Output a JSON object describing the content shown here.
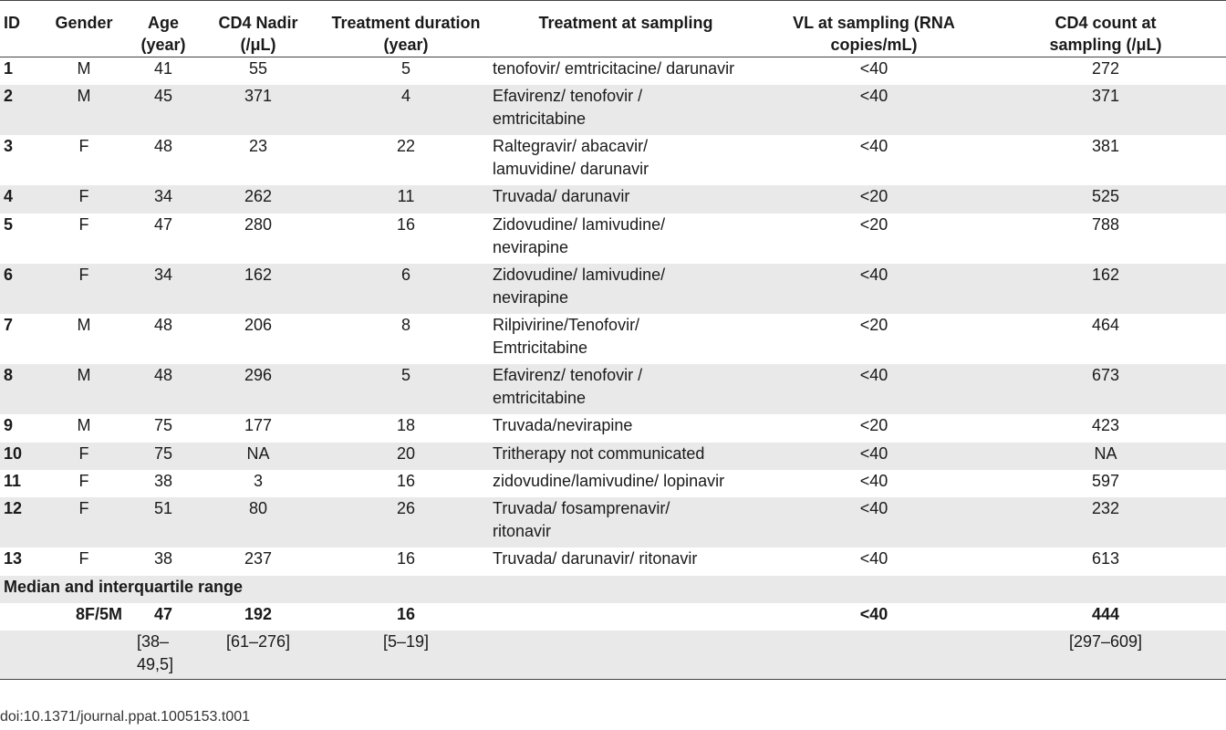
{
  "table": {
    "headers": {
      "id": "ID",
      "gender": "Gender",
      "age_line1": "Age",
      "age_line2": "(year)",
      "nadir_line1": "CD4 Nadir",
      "nadir_line2": "(/μL)",
      "duration_line1": "Treatment duration",
      "duration_line2": "(year)",
      "treatment": "Treatment at sampling",
      "vl_line1": "VL at sampling (RNA",
      "vl_line2": "copies/mL)",
      "cd4_line1": "CD4 count at",
      "cd4_line2": "sampling (/μL)"
    },
    "rows": [
      {
        "id": "1",
        "gender": "M",
        "age": "41",
        "nadir": "55",
        "duration": "5",
        "treatment_line1": "tenofovir/ emtricitacine/ darunavir",
        "treatment_line2": "",
        "vl": "<40",
        "cd4": "272"
      },
      {
        "id": "2",
        "gender": "M",
        "age": "45",
        "nadir": "371",
        "duration": "4",
        "treatment_line1": "Efavirenz/ tenofovir /",
        "treatment_line2": "emtricitabine",
        "vl": "<40",
        "cd4": "371"
      },
      {
        "id": "3",
        "gender": "F",
        "age": "48",
        "nadir": "23",
        "duration": "22",
        "treatment_line1": "Raltegravir/ abacavir/",
        "treatment_line2": "lamuvidine/ darunavir",
        "vl": "<40",
        "cd4": "381"
      },
      {
        "id": "4",
        "gender": "F",
        "age": "34",
        "nadir": "262",
        "duration": "11",
        "treatment_line1": "Truvada/ darunavir",
        "treatment_line2": "",
        "vl": "<20",
        "cd4": "525"
      },
      {
        "id": "5",
        "gender": "F",
        "age": "47",
        "nadir": "280",
        "duration": "16",
        "treatment_line1": "Zidovudine/ lamivudine/",
        "treatment_line2": "nevirapine",
        "vl": "<20",
        "cd4": "788"
      },
      {
        "id": "6",
        "gender": "F",
        "age": "34",
        "nadir": "162",
        "duration": "6",
        "treatment_line1": "Zidovudine/ lamivudine/",
        "treatment_line2": "nevirapine",
        "vl": "<40",
        "cd4": "162"
      },
      {
        "id": "7",
        "gender": "M",
        "age": "48",
        "nadir": "206",
        "duration": "8",
        "treatment_line1": "Rilpivirine/Tenofovir/",
        "treatment_line2": "Emtricitabine",
        "vl": "<20",
        "cd4": "464"
      },
      {
        "id": "8",
        "gender": "M",
        "age": "48",
        "nadir": "296",
        "duration": "5",
        "treatment_line1": "Efavirenz/ tenofovir /",
        "treatment_line2": "emtricitabine",
        "vl": "<40",
        "cd4": "673"
      },
      {
        "id": "9",
        "gender": "M",
        "age": "75",
        "nadir": "177",
        "duration": "18",
        "treatment_line1": "Truvada/nevirapine",
        "treatment_line2": "",
        "vl": "<20",
        "cd4": "423"
      },
      {
        "id": "10",
        "gender": "F",
        "age": "75",
        "nadir": "NA",
        "duration": "20",
        "treatment_line1": "Tritherapy not communicated",
        "treatment_line2": "",
        "vl": "<40",
        "cd4": "NA"
      },
      {
        "id": "11",
        "gender": "F",
        "age": "38",
        "nadir": "3",
        "duration": "16",
        "treatment_line1": "zidovudine/lamivudine/ lopinavir",
        "treatment_line2": "",
        "vl": "<40",
        "cd4": "597"
      },
      {
        "id": "12",
        "gender": "F",
        "age": "51",
        "nadir": "80",
        "duration": "26",
        "treatment_line1": "Truvada/ fosamprenavir/",
        "treatment_line2": "ritonavir",
        "vl": "<40",
        "cd4": "232"
      },
      {
        "id": "13",
        "gender": "F",
        "age": "38",
        "nadir": "237",
        "duration": "16",
        "treatment_line1": "Truvada/ darunavir/ ritonavir",
        "treatment_line2": "",
        "vl": "<40",
        "cd4": "613"
      }
    ],
    "summary": {
      "label": "Median and interquartile range",
      "gender": "8F/5M",
      "age_median": "47",
      "nadir_median": "192",
      "duration_median": "16",
      "vl_median": "<40",
      "cd4_median": "444",
      "age_iqr_line1": "[38–",
      "age_iqr_line2": "49,5]",
      "nadir_iqr": "[61–276]",
      "duration_iqr": "[5–19]",
      "cd4_iqr": "[297–609]"
    }
  },
  "footer": {
    "doi": "doi:10.1371/journal.ppat.1005153.t001"
  }
}
